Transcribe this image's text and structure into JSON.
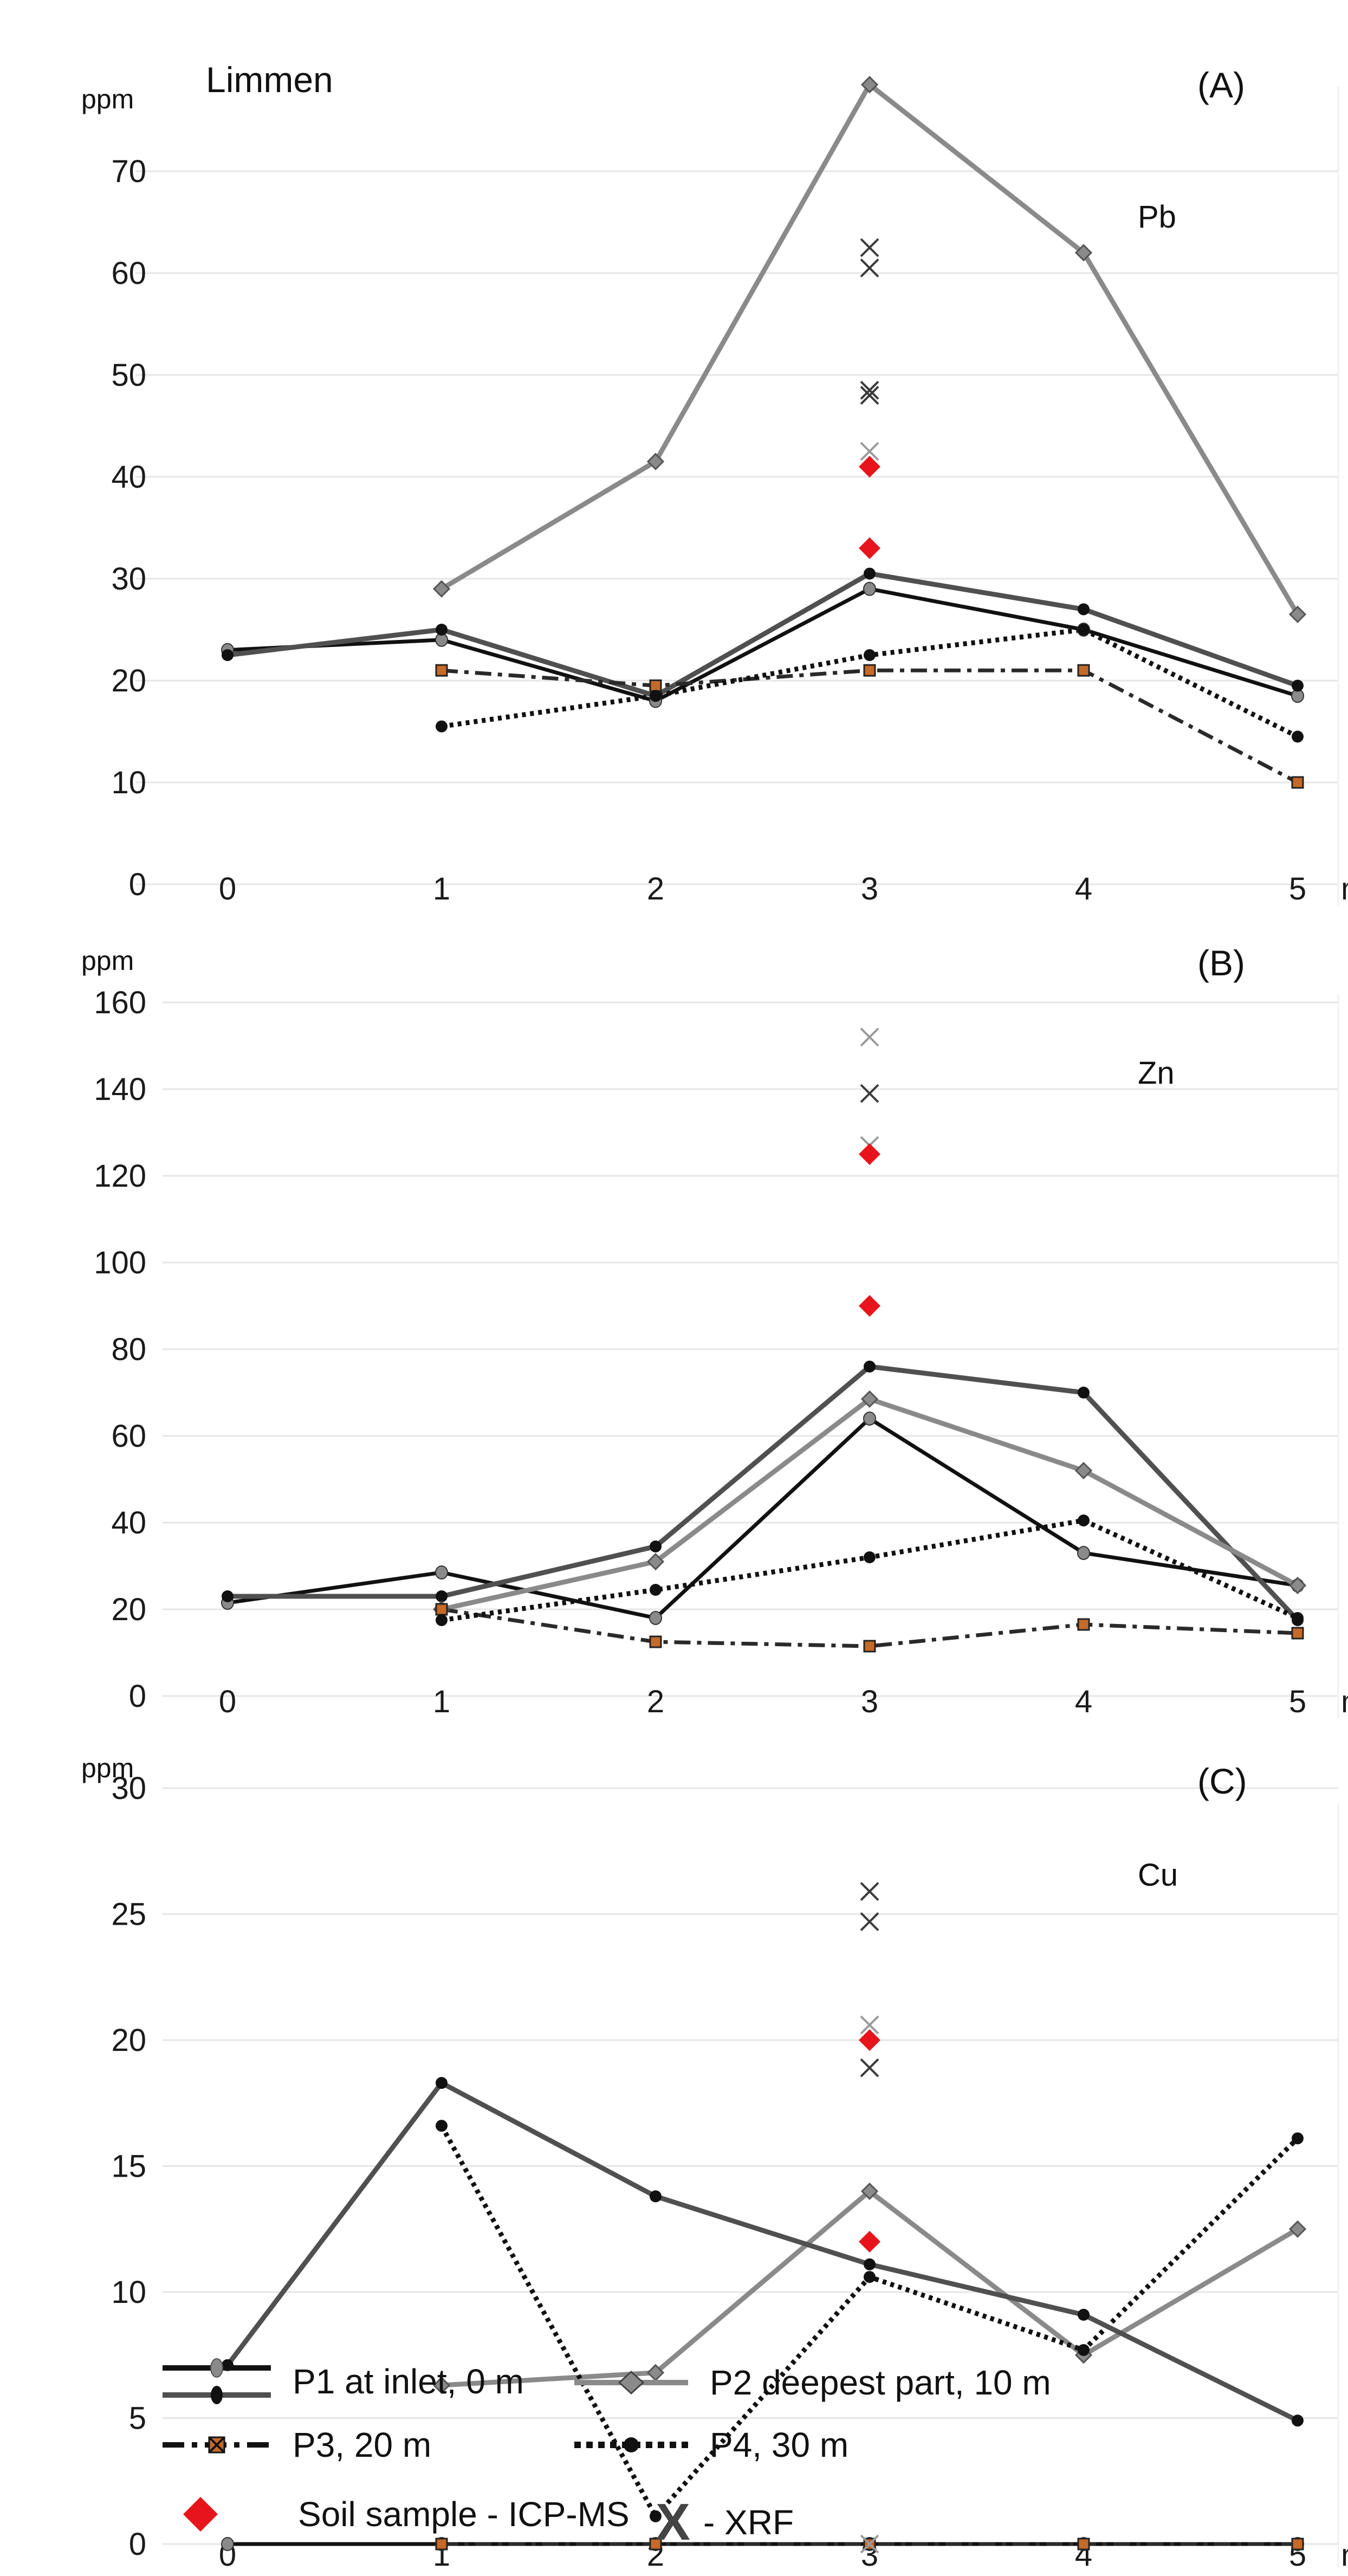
{
  "chart_data": [
    {
      "type": "line",
      "panel": "(A)",
      "site": "Limmen",
      "element": "Pb",
      "unit": "ppm",
      "x_unit": "m",
      "x_ticks": [
        "0",
        "1",
        "2",
        "3",
        "4",
        "5"
      ],
      "ylim": [
        0,
        80
      ],
      "y_ticks": [
        0,
        10,
        20,
        30,
        40,
        50,
        60,
        70
      ],
      "series": [
        {
          "key": "p1a",
          "x": [
            0,
            1,
            2,
            3,
            4,
            5
          ],
          "values": [
            23,
            24,
            18,
            29,
            25,
            18.5
          ]
        },
        {
          "key": "p1b",
          "x": [
            0,
            1,
            2,
            3,
            4,
            5
          ],
          "values": [
            22.5,
            25,
            18.5,
            30.5,
            27,
            19.5
          ]
        },
        {
          "key": "p2",
          "x": [
            1,
            2,
            3,
            4,
            5
          ],
          "values": [
            29,
            41.5,
            78.5,
            62,
            26.5
          ]
        },
        {
          "key": "p3",
          "x": [
            1,
            2,
            3,
            4,
            5
          ],
          "values": [
            21,
            19.5,
            21,
            21,
            10
          ]
        },
        {
          "key": "p4",
          "x": [
            1,
            2,
            3,
            4,
            5
          ],
          "values": [
            15.5,
            18.5,
            22.5,
            25,
            14.5
          ]
        }
      ],
      "icpms": [
        {
          "x": 3,
          "y": 41
        },
        {
          "x": 3,
          "y": 33
        }
      ],
      "xrf": [
        {
          "x": 3,
          "y": 62.5,
          "shade": "dark"
        },
        {
          "x": 3,
          "y": 60.5,
          "shade": "dark"
        },
        {
          "x": 3,
          "y": 48.5,
          "shade": "dark"
        },
        {
          "x": 3,
          "y": 48,
          "shade": "dark"
        },
        {
          "x": 3,
          "y": 42.5,
          "shade": "light"
        }
      ]
    },
    {
      "type": "line",
      "panel": "(B)",
      "element": "Zn",
      "unit": "ppm",
      "x_unit": "m",
      "x_ticks": [
        "0",
        "1",
        "2",
        "3",
        "4",
        "5"
      ],
      "ylim": [
        0,
        160
      ],
      "y_ticks": [
        0,
        20,
        40,
        60,
        80,
        100,
        120,
        140,
        160
      ],
      "series": [
        {
          "key": "p1a",
          "x": [
            0,
            1,
            2,
            3,
            4,
            5
          ],
          "values": [
            21.5,
            28.5,
            18,
            64,
            33,
            25.5
          ]
        },
        {
          "key": "p1b",
          "x": [
            0,
            1,
            2,
            3,
            4,
            5
          ],
          "values": [
            23,
            23,
            34.5,
            76,
            70,
            17.5
          ]
        },
        {
          "key": "p2",
          "x": [
            1,
            2,
            3,
            4,
            5
          ],
          "values": [
            20,
            31,
            68.5,
            52,
            25.5
          ]
        },
        {
          "key": "p3",
          "x": [
            1,
            2,
            3,
            4,
            5
          ],
          "values": [
            20,
            12.5,
            11.5,
            16.5,
            14.5
          ]
        },
        {
          "key": "p4",
          "x": [
            1,
            2,
            3,
            4,
            5
          ],
          "values": [
            17.5,
            24.5,
            32,
            40.5,
            18
          ]
        }
      ],
      "icpms": [
        {
          "x": 3,
          "y": 125
        },
        {
          "x": 3,
          "y": 90
        }
      ],
      "xrf": [
        {
          "x": 3,
          "y": 152,
          "shade": "light"
        },
        {
          "x": 3,
          "y": 139,
          "shade": "dark"
        },
        {
          "x": 3,
          "y": 127,
          "shade": "light"
        }
      ]
    },
    {
      "type": "line",
      "panel": "(C)",
      "element": "Cu",
      "unit": "ppm",
      "x_unit": "m",
      "x_ticks": [
        "0",
        "1",
        "2",
        "3",
        "4",
        "5"
      ],
      "ylim": [
        0,
        30
      ],
      "y_ticks": [
        0,
        5,
        10,
        15,
        20,
        25,
        30
      ],
      "series": [
        {
          "key": "p1a",
          "x": [
            0,
            1,
            2,
            3,
            4,
            5
          ],
          "values": [
            0,
            0,
            0,
            0,
            0,
            0
          ]
        },
        {
          "key": "p3",
          "x": [
            1,
            2,
            3,
            4,
            5
          ],
          "values": [
            0,
            0,
            0,
            0,
            0
          ]
        },
        {
          "key": "p2",
          "x": [
            1,
            2,
            3,
            4,
            5
          ],
          "values": [
            6.3,
            6.8,
            14,
            7.5,
            12.5
          ]
        },
        {
          "key": "p4",
          "x": [
            1,
            2,
            3,
            4,
            5
          ],
          "values": [
            16.6,
            1.1,
            10.6,
            7.7,
            16.1
          ]
        },
        {
          "key": "p1b",
          "x": [
            0,
            1,
            2,
            3,
            4,
            5
          ],
          "values": [
            7.1,
            18.3,
            13.8,
            11.1,
            9.1,
            4.9
          ]
        }
      ],
      "icpms": [
        {
          "x": 3,
          "y": 20
        },
        {
          "x": 3,
          "y": 12
        }
      ],
      "xrf": [
        {
          "x": 3,
          "y": 25.9,
          "shade": "dark"
        },
        {
          "x": 3,
          "y": 24.7,
          "shade": "dark"
        },
        {
          "x": 3,
          "y": 20.6,
          "shade": "light"
        },
        {
          "x": 3,
          "y": 18.9,
          "shade": "dark"
        },
        {
          "x": 3,
          "y": 0,
          "shade": "light"
        }
      ]
    }
  ],
  "legend": {
    "p1": "P1 at inlet, 0 m",
    "p2": "P2 deepest part, 10 m",
    "p3": "P3, 20 m",
    "p4": "P4, 30 m",
    "icpms": "Soil sample - ICP-MS",
    "xrf": "- XRF",
    "xrf_symbol": "X"
  },
  "colors": {
    "p1a": "#111111",
    "p1b": "#505050",
    "p2": "#8a8a8a",
    "p3": "#2a2a2a",
    "p4": "#111111",
    "icpms": "#e8141b",
    "xrf_dark": "#3a3a3a",
    "xrf_light": "#9a9a9a",
    "grid": "#e6e6e6",
    "p3_marker": "#c46a2a"
  }
}
